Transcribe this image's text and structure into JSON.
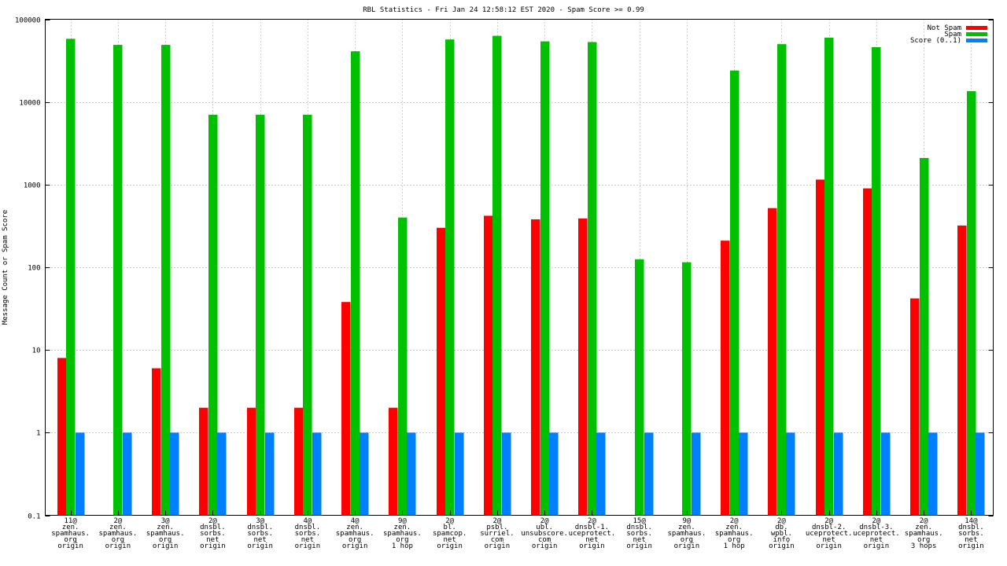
{
  "chart_data": {
    "type": "bar",
    "title": "RBL Statistics - Fri Jan 24 12:58:12 EST 2020 - Spam Score >= 0.99",
    "xlabel": "",
    "ylabel": "Message Count or Spam Score",
    "yscale": "log",
    "ylim": [
      0.1,
      100000
    ],
    "yticks": [
      {
        "value": 0.1,
        "label": "0.1"
      },
      {
        "value": 1,
        "label": "1"
      },
      {
        "value": 10,
        "label": "10"
      },
      {
        "value": 100,
        "label": "100"
      },
      {
        "value": 1000,
        "label": "1000"
      },
      {
        "value": 10000,
        "label": "10000"
      },
      {
        "value": 100000,
        "label": "100000"
      }
    ],
    "grid": true,
    "legend_position": "top-right",
    "categories": [
      [
        "11@",
        "zen.",
        "spamhaus.",
        "org",
        "origin"
      ],
      [
        "2@",
        "zen.",
        "spamhaus.",
        "org",
        "origin"
      ],
      [
        "3@",
        "zen.",
        "spamhaus.",
        "org",
        "origin"
      ],
      [
        "2@",
        "dnsbl.",
        "sorbs.",
        "net",
        "origin"
      ],
      [
        "3@",
        "dnsbl.",
        "sorbs.",
        "net",
        "origin"
      ],
      [
        "4@",
        "dnsbl.",
        "sorbs.",
        "net",
        "origin"
      ],
      [
        "4@",
        "zen.",
        "spamhaus.",
        "org",
        "origin"
      ],
      [
        "9@",
        "zen.",
        "spamhaus.",
        "org",
        "1 hop"
      ],
      [
        "2@",
        "bl.",
        "spamcop.",
        "net",
        "origin"
      ],
      [
        "2@",
        "psbl.",
        "surriel.",
        "com",
        "origin"
      ],
      [
        "2@",
        "ubl.",
        "unsubscore.",
        "com",
        "origin"
      ],
      [
        "2@",
        "dnsbl-1.",
        "uceprotect.",
        "net",
        "origin"
      ],
      [
        "15@",
        "dnsbl.",
        "sorbs.",
        "net",
        "origin"
      ],
      [
        "9@",
        "zen.",
        "spamhaus.",
        "org",
        "origin"
      ],
      [
        "2@",
        "zen.",
        "spamhaus.",
        "org",
        "1 hop"
      ],
      [
        "2@",
        "db.",
        "wpbl.",
        "info",
        "origin"
      ],
      [
        "2@",
        "dnsbl-2.",
        "uceprotect.",
        "net",
        "origin"
      ],
      [
        "2@",
        "dnsbl-3.",
        "uceprotect.",
        "net",
        "origin"
      ],
      [
        "2@",
        "zen.",
        "spamhaus.",
        "org",
        "3 hops"
      ],
      [
        "14@",
        "dnsbl.",
        "sorbs.",
        "net",
        "origin"
      ]
    ],
    "series": [
      {
        "name": "Not Spam",
        "color": "#ff0000",
        "values": [
          8,
          null,
          6,
          2,
          2,
          2,
          38,
          2,
          300,
          420,
          380,
          390,
          null,
          null,
          210,
          520,
          1150,
          900,
          42,
          320
        ]
      },
      {
        "name": "Spam",
        "color": "#00c000",
        "values": [
          58000,
          49000,
          49000,
          7000,
          7000,
          7000,
          41000,
          400,
          57000,
          63000,
          54000,
          53000,
          125,
          115,
          24000,
          50000,
          60000,
          46000,
          2100,
          13500
        ]
      },
      {
        "name": "Score (0..1)",
        "color": "#0080ff",
        "values": [
          1,
          1,
          1,
          1,
          1,
          1,
          1,
          1,
          1,
          1,
          1,
          1,
          1,
          1,
          1,
          1,
          1,
          1,
          1,
          1
        ]
      }
    ]
  }
}
